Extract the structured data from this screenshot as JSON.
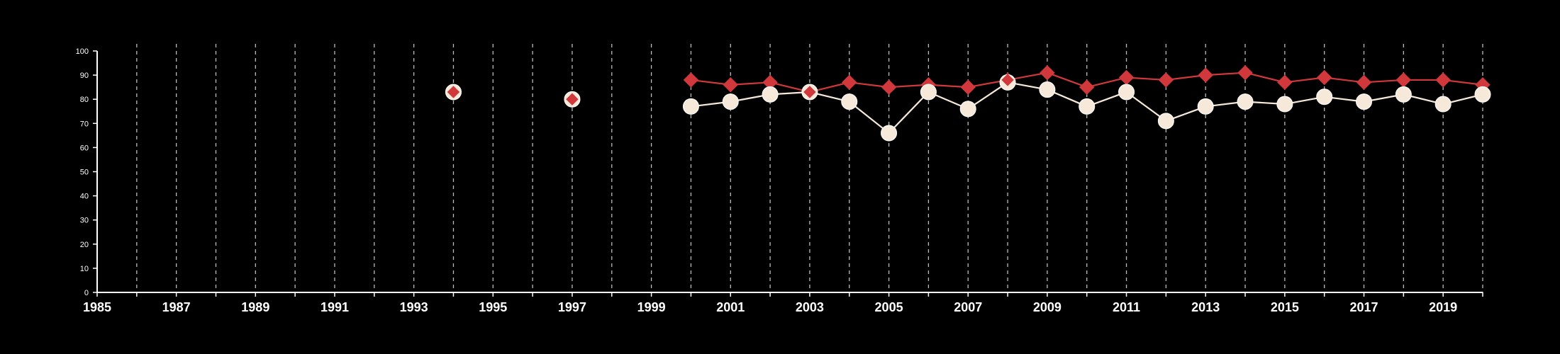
{
  "chart_data": {
    "type": "line",
    "title": "",
    "xlabel": "",
    "ylabel": "",
    "xlim": [
      1985,
      2020
    ],
    "ylim": [
      0,
      100
    ],
    "x_ticks": [
      "1985",
      "1987",
      "1989",
      "1991",
      "1993",
      "1995",
      "1997",
      "1999",
      "2001",
      "2003",
      "2005",
      "2007",
      "2009",
      "2011",
      "2013",
      "2015",
      "2017",
      "2019"
    ],
    "y_ticks": [
      "0",
      "10",
      "20",
      "30",
      "40",
      "50",
      "60",
      "70",
      "80",
      "90",
      "100"
    ],
    "grid": "vertical dashed, every year",
    "colors": {
      "background": "#000000",
      "axis": "#ffffff",
      "grid": "#bbbbbb",
      "series_red": "#d0383c",
      "series_cream": "#f7e9d9"
    },
    "series": [
      {
        "marker": "diamond",
        "color": "#d0383c",
        "points": [
          [
            1994,
            83
          ],
          [
            1997,
            80
          ],
          [
            2000,
            88
          ],
          [
            2001,
            86
          ],
          [
            2002,
            87
          ],
          [
            2003,
            83
          ],
          [
            2004,
            87
          ],
          [
            2005,
            85
          ],
          [
            2006,
            86
          ],
          [
            2007,
            85
          ],
          [
            2008,
            88
          ],
          [
            2009,
            91
          ],
          [
            2010,
            85
          ],
          [
            2011,
            89
          ],
          [
            2012,
            88
          ],
          [
            2013,
            90
          ],
          [
            2014,
            91
          ],
          [
            2015,
            87
          ],
          [
            2016,
            89
          ],
          [
            2017,
            87
          ],
          [
            2018,
            88
          ],
          [
            2019,
            88
          ],
          [
            2020,
            86
          ]
        ]
      },
      {
        "marker": "circle",
        "color": "#f7e9d9",
        "points": [
          [
            1994,
            83
          ],
          [
            1997,
            80
          ],
          [
            2000,
            77
          ],
          [
            2001,
            79
          ],
          [
            2002,
            82
          ],
          [
            2003,
            83
          ],
          [
            2004,
            79
          ],
          [
            2005,
            66
          ],
          [
            2006,
            83
          ],
          [
            2007,
            76
          ],
          [
            2008,
            87
          ],
          [
            2009,
            84
          ],
          [
            2010,
            77
          ],
          [
            2011,
            83
          ],
          [
            2012,
            71
          ],
          [
            2013,
            77
          ],
          [
            2014,
            79
          ],
          [
            2015,
            78
          ],
          [
            2016,
            81
          ],
          [
            2017,
            79
          ],
          [
            2018,
            82
          ],
          [
            2019,
            78
          ],
          [
            2020,
            82
          ]
        ]
      }
    ]
  }
}
